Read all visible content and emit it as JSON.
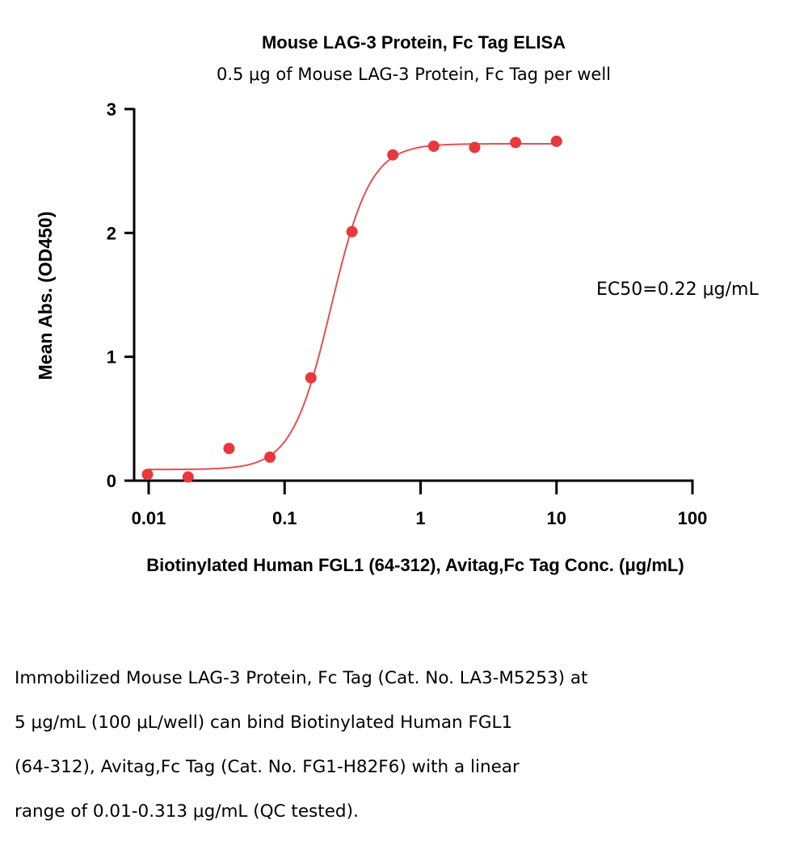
{
  "chart_data": {
    "type": "scatter",
    "title": "Mouse LAG-3 Protein, Fc Tag ELISA",
    "subtitle": "0.5 μg of Mouse LAG-3 Protein, Fc Tag per well",
    "xlabel": "Biotinylated Human FGL1 (64-312), Avitag,Fc Tag Conc. (μg/mL)",
    "ylabel": "Mean Abs. (OD450)",
    "x_scale": "log",
    "xlim": [
      0.01,
      100
    ],
    "ylim": [
      0,
      3
    ],
    "x_ticks": [
      0.01,
      0.1,
      1,
      10,
      100
    ],
    "x_tick_labels": [
      "0.01",
      "0.1",
      "1",
      "10",
      "100"
    ],
    "y_ticks": [
      0,
      1,
      2,
      3
    ],
    "y_tick_labels": [
      "0",
      "1",
      "2",
      "3"
    ],
    "grid": false,
    "series": [
      {
        "points": [
          {
            "x": 0.0098,
            "y": 0.05
          },
          {
            "x": 0.0195,
            "y": 0.03
          },
          {
            "x": 0.039,
            "y": 0.26
          },
          {
            "x": 0.078,
            "y": 0.19
          },
          {
            "x": 0.156,
            "y": 0.83
          },
          {
            "x": 0.313,
            "y": 2.01
          },
          {
            "x": 0.625,
            "y": 2.63
          },
          {
            "x": 1.25,
            "y": 2.7
          },
          {
            "x": 2.5,
            "y": 2.69
          },
          {
            "x": 5,
            "y": 2.73
          },
          {
            "x": 10,
            "y": 2.74
          }
        ]
      }
    ],
    "fit_curve": {
      "model": "4PL",
      "bottom": 0.09,
      "top": 2.72,
      "ec50": 0.22,
      "hill": 3.0,
      "x_range": [
        0.0098,
        10
      ]
    },
    "annotation": "EC50=0.22 μg/mL",
    "colors": {
      "series": "#e8383d",
      "curve": "#e05252",
      "axis": "#000000"
    }
  },
  "caption": {
    "lines": [
      "Immobilized Mouse LAG-3 Protein, Fc Tag (Cat. No. LA3-M5253) at",
      "5 μg/mL (100 μL/well) can bind Biotinylated Human FGL1",
      "(64-312), Avitag,Fc Tag (Cat. No. FG1-H82F6) with a linear",
      "range of 0.01-0.313 μg/mL (QC tested)."
    ]
  }
}
